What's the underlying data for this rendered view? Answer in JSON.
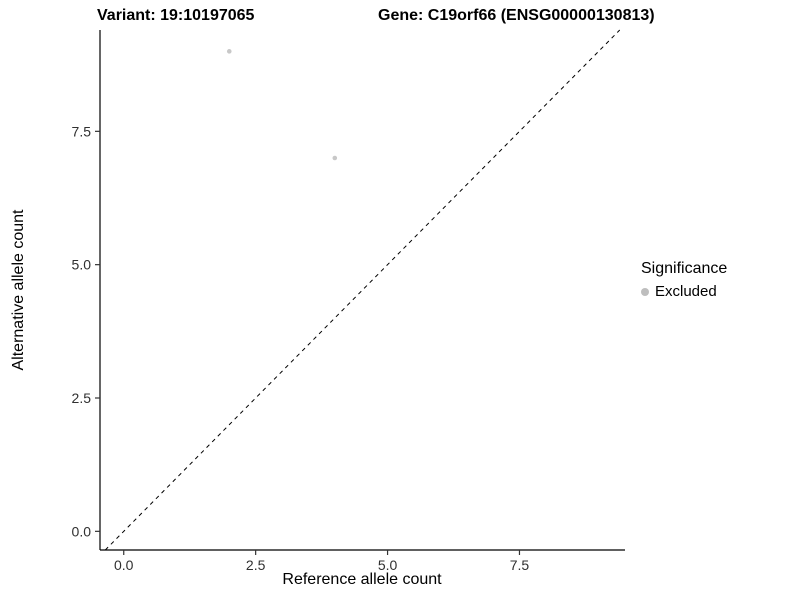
{
  "chart_data": {
    "type": "scatter",
    "title_left": "Variant: 19:10197065",
    "title_right": "Gene: C19orf66 (ENSG00000130813)",
    "xlabel": "Reference allele count",
    "ylabel": "Alternative allele count",
    "xlim": [
      -0.45,
      9.5
    ],
    "ylim": [
      -0.35,
      9.4
    ],
    "xtick_values": [
      0,
      2.5,
      5,
      7.5
    ],
    "xtick_labels": [
      "0.0",
      "2.5",
      "5.0",
      "7.5"
    ],
    "ytick_values": [
      0,
      2.5,
      5,
      7.5
    ],
    "ytick_labels": [
      "0.0",
      "2.5",
      "5.0",
      "7.5"
    ],
    "grid": false,
    "identity_line": {
      "equation": "y = x",
      "style": "dashed",
      "color": "#000000"
    },
    "points": [
      {
        "x": 2,
        "y": 9,
        "series": "Excluded"
      },
      {
        "x": 4,
        "y": 7,
        "series": "Excluded"
      }
    ],
    "point_color": "#c8c8c8",
    "legend": {
      "title": "Significance",
      "position": "right",
      "items": [
        {
          "label": "Excluded",
          "color": "#bebebe"
        }
      ]
    }
  }
}
